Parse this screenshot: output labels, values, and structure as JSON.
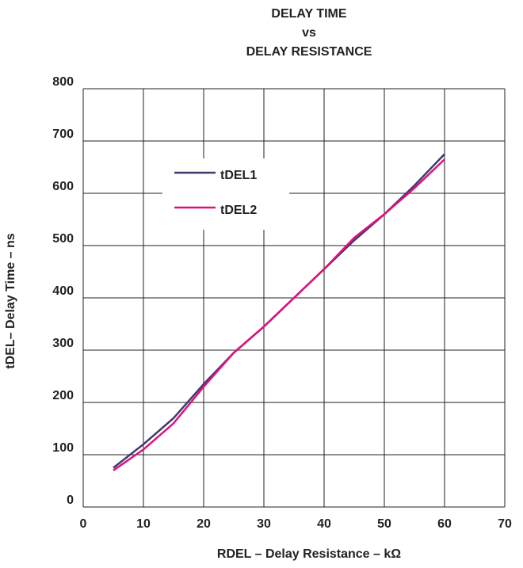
{
  "chart_data": {
    "type": "line",
    "title_lines": [
      "DELAY TIME",
      "vs",
      "DELAY RESISTANCE"
    ],
    "x_label": "RDEL – Delay Resistance – kΩ",
    "y_label": "tDEL– Delay Time – ns",
    "x": [
      5,
      10,
      15,
      20,
      25,
      30,
      35,
      40,
      45,
      50,
      55,
      60
    ],
    "series": [
      {
        "name": "tDEL1",
        "color": "#3b3b6e",
        "values": [
          75,
          120,
          170,
          235,
          295,
          345,
          400,
          455,
          510,
          560,
          615,
          675
        ]
      },
      {
        "name": "tDEL2",
        "color": "#e0107f",
        "values": [
          70,
          110,
          160,
          230,
          295,
          345,
          400,
          455,
          515,
          560,
          610,
          665
        ]
      }
    ],
    "xlim": [
      0,
      70
    ],
    "xticks": [
      0,
      10,
      20,
      30,
      40,
      50,
      60,
      70
    ],
    "ylim": [
      0,
      800
    ],
    "yticks": [
      0,
      100,
      200,
      300,
      400,
      500,
      600,
      700,
      800
    ],
    "grid": true
  }
}
